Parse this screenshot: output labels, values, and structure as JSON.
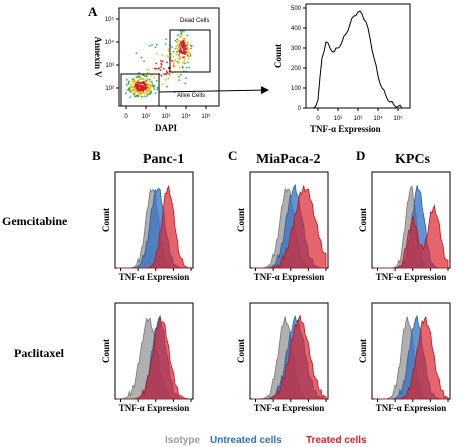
{
  "panels": {
    "A": {
      "letter": "A"
    },
    "B": {
      "letter": "B",
      "title": "Panc-1"
    },
    "C": {
      "letter": "C",
      "title": "MiaPaca-2"
    },
    "D": {
      "letter": "D",
      "title": "KPCs"
    }
  },
  "row_labels": [
    "Gemcitabine",
    "Paclitaxel"
  ],
  "legend": [
    {
      "label": "Isotype",
      "color": "#9a9a9a"
    },
    {
      "label": "Untreated cells",
      "color": "#2f6fc0"
    },
    {
      "label": "Treated cells",
      "color": "#d9232d"
    }
  ],
  "histogram_axes": {
    "xlabel": "TNF-α Expression",
    "ylabel": "Count"
  },
  "chart_data": [
    {
      "type": "scatter",
      "panel": "A",
      "xlabel": "DAPI",
      "ylabel": "Annexin V",
      "x_ticks": [
        "0",
        "10²",
        "10³",
        "10⁴",
        "10⁵"
      ],
      "y_ticks": [
        "10²",
        "10³",
        "10⁴",
        "10⁵"
      ],
      "gates": [
        {
          "label": "Dead Cells",
          "x_range": [
            3000,
            100000
          ],
          "y_range": [
            400,
            40000
          ]
        },
        {
          "label": "Alive Cells",
          "x_range": [
            0,
            1200
          ],
          "y_range": [
            0,
            700
          ]
        }
      ]
    },
    {
      "type": "area",
      "panel": "A-histogram",
      "xlabel": "TNF-α Expression",
      "ylabel": "Count",
      "x_ticks": [
        "0",
        "10²",
        "10³",
        "10⁴",
        "10⁵"
      ],
      "y_ticks": [
        "0",
        "100",
        "200",
        "300",
        "400",
        "500"
      ],
      "ylim": [
        0,
        520
      ],
      "x": [
        0,
        0.2,
        0.4,
        0.6,
        0.8,
        1.0,
        1.2,
        1.4,
        1.6,
        1.8,
        2.0,
        2.2,
        2.4,
        2.6,
        2.8,
        3.0,
        3.2,
        3.4,
        3.6,
        3.8,
        4.0,
        4.2,
        4.4
      ],
      "values": [
        0,
        40,
        250,
        330,
        300,
        280,
        300,
        330,
        370,
        420,
        460,
        480,
        470,
        430,
        350,
        250,
        160,
        100,
        60,
        30,
        15,
        8,
        0
      ]
    },
    {
      "type": "area",
      "panel": "B-Gemcitabine",
      "series": [
        {
          "name": "Isotype",
          "peak": 2.0,
          "spread": 0.35
        },
        {
          "name": "Untreated cells",
          "peak": 2.3,
          "spread": 0.4
        },
        {
          "name": "Treated cells",
          "peak": 2.9,
          "spread": 0.35
        }
      ]
    },
    {
      "type": "area",
      "panel": "B-Paclitaxel",
      "series": [
        {
          "name": "Isotype",
          "peak": 1.8,
          "spread": 0.45
        },
        {
          "name": "Untreated cells",
          "peak": 2.4,
          "spread": 0.4
        },
        {
          "name": "Treated cells",
          "peak": 2.5,
          "spread": 0.45
        }
      ]
    },
    {
      "type": "area",
      "panel": "C-Gemcitabine",
      "series": [
        {
          "name": "Isotype",
          "peak": 2.0,
          "spread": 0.4
        },
        {
          "name": "Untreated cells",
          "peak": 2.4,
          "spread": 0.45
        },
        {
          "name": "Treated cells",
          "peak": 3.0,
          "spread": 0.6
        }
      ]
    },
    {
      "type": "area",
      "panel": "C-Paclitaxel",
      "series": [
        {
          "name": "Isotype",
          "peak": 1.9,
          "spread": 0.4
        },
        {
          "name": "Untreated cells",
          "peak": 2.5,
          "spread": 0.5
        },
        {
          "name": "Treated cells",
          "peak": 2.7,
          "spread": 0.55
        }
      ]
    },
    {
      "type": "area",
      "panel": "D-Gemcitabine",
      "series": [
        {
          "name": "Isotype",
          "peak": 2.1,
          "spread": 0.3
        },
        {
          "name": "Untreated cells",
          "peak": 2.5,
          "spread": 0.35
        },
        {
          "name": "Treated cells",
          "peak": 3.3,
          "spread": 0.6
        }
      ]
    },
    {
      "type": "area",
      "panel": "D-Paclitaxel",
      "series": [
        {
          "name": "Isotype",
          "peak": 1.9,
          "spread": 0.35
        },
        {
          "name": "Untreated cells",
          "peak": 2.4,
          "spread": 0.4
        },
        {
          "name": "Treated cells",
          "peak": 2.9,
          "spread": 0.45
        }
      ]
    }
  ]
}
